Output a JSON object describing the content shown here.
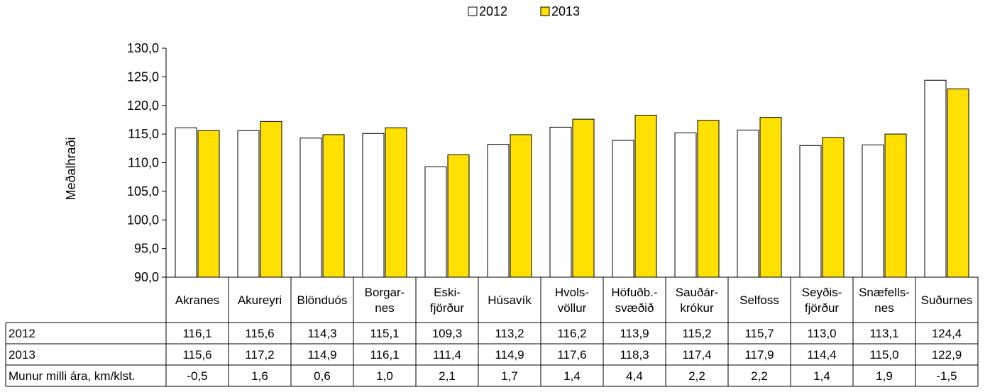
{
  "chart_data": {
    "type": "bar",
    "title": "",
    "xlabel": "",
    "ylabel": "Meðalhraði",
    "ylim": [
      90,
      130
    ],
    "yticks": [
      "90,0",
      "95,0",
      "100,0",
      "105,0",
      "110,0",
      "115,0",
      "120,0",
      "125,0",
      "130,0"
    ],
    "ytick_values": [
      90,
      95,
      100,
      105,
      110,
      115,
      120,
      125,
      130
    ],
    "grid": false,
    "legend_position": "top-center",
    "categories": [
      [
        "Akranes"
      ],
      [
        "Akureyri"
      ],
      [
        "Blönduós"
      ],
      [
        "Borgar-",
        "nes"
      ],
      [
        "Eski-",
        "fjörður"
      ],
      [
        "Húsavík"
      ],
      [
        "Hvols-",
        "völlur"
      ],
      [
        "Höfuðb.-",
        "svæðið"
      ],
      [
        "Sauðár-",
        "krókur"
      ],
      [
        "Selfoss"
      ],
      [
        "Seyðis-",
        "fjörður"
      ],
      [
        "Snæfells-",
        "nes"
      ],
      [
        "Suðurnes"
      ]
    ],
    "series": [
      {
        "name": "2012",
        "color": "#ffffff",
        "values": [
          116.1,
          115.6,
          114.3,
          115.1,
          109.3,
          113.2,
          116.2,
          113.9,
          115.2,
          115.7,
          113.0,
          113.1,
          124.4
        ]
      },
      {
        "name": "2013",
        "color": "#ffe000",
        "values": [
          115.6,
          117.2,
          114.9,
          116.1,
          111.4,
          114.9,
          117.6,
          118.3,
          117.4,
          117.9,
          114.4,
          115.0,
          122.9
        ]
      }
    ],
    "table": {
      "rows": [
        {
          "label": "2012",
          "cells": [
            "116,1",
            "115,6",
            "114,3",
            "115,1",
            "109,3",
            "113,2",
            "116,2",
            "113,9",
            "115,2",
            "115,7",
            "113,0",
            "113,1",
            "124,4"
          ]
        },
        {
          "label": "2013",
          "cells": [
            "115,6",
            "117,2",
            "114,9",
            "116,1",
            "111,4",
            "114,9",
            "117,6",
            "118,3",
            "117,4",
            "117,9",
            "114,4",
            "115,0",
            "122,9"
          ]
        },
        {
          "label": "Munur milli ára, km/klst.",
          "cells": [
            "-0,5",
            "1,6",
            "0,6",
            "1,0",
            "2,1",
            "1,7",
            "1,4",
            "4,4",
            "2,2",
            "2,2",
            "1,4",
            "1,9",
            "-1,5"
          ]
        }
      ]
    }
  }
}
